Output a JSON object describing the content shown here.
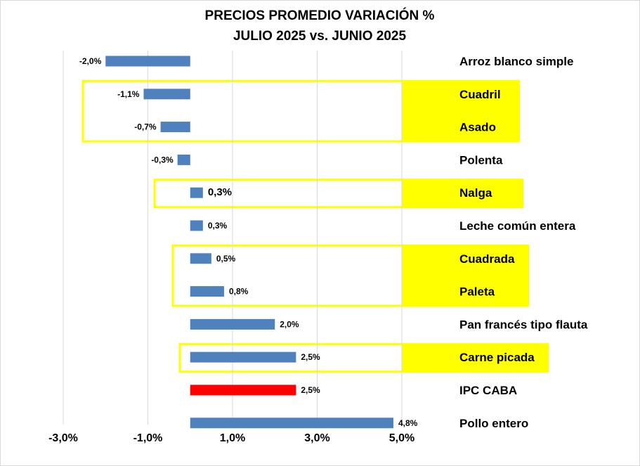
{
  "chart_data": {
    "type": "bar",
    "orientation": "horizontal",
    "title_lines": [
      "PRECIOS PROMEDIO VARIACIÓN %",
      "JULIO 2025 vs. JUNIO 2025"
    ],
    "categories": [
      "Arroz blanco simple",
      "Cuadril",
      "Asado",
      "Polenta",
      "Nalga",
      "Leche común entera",
      "Cuadrada",
      "Paleta",
      "Pan francés tipo flauta",
      "Carne picada",
      "IPC CABA",
      "Pollo entero"
    ],
    "values": [
      -2.0,
      -1.1,
      -0.7,
      -0.3,
      0.3,
      0.3,
      0.5,
      0.8,
      2.0,
      2.5,
      2.5,
      4.8
    ],
    "data_labels": [
      "-2,0%",
      "-1,1%",
      "-0,7%",
      "-0,3%",
      "0,3%",
      "0,3%",
      "0,5%",
      "0,8%",
      "2,0%",
      "2,5%",
      "2,5%",
      "4,8%"
    ],
    "bar_colors": [
      "#4f81bd",
      "#4f81bd",
      "#4f81bd",
      "#4f81bd",
      "#4f81bd",
      "#4f81bd",
      "#4f81bd",
      "#4f81bd",
      "#4f81bd",
      "#4f81bd",
      "#ff0000",
      "#4f81bd"
    ],
    "xlim": [
      -3.0,
      5.0
    ],
    "x_ticks": [
      -3.0,
      -1.0,
      1.0,
      3.0,
      5.0
    ],
    "x_tick_labels": [
      "-3,0%",
      "-1,0%",
      "1,0%",
      "3,0%",
      "5,0%"
    ],
    "gridlines": "vertical",
    "highlighted_groups": [
      {
        "categories": [
          "Cuadril",
          "Asado"
        ],
        "color": "#ffff00"
      },
      {
        "categories": [
          "Nalga"
        ],
        "color": "#ffff00"
      },
      {
        "categories": [
          "Cuadrada",
          "Paleta"
        ],
        "color": "#ffff00"
      },
      {
        "categories": [
          "Carne picada"
        ],
        "color": "#ffff00"
      }
    ]
  }
}
